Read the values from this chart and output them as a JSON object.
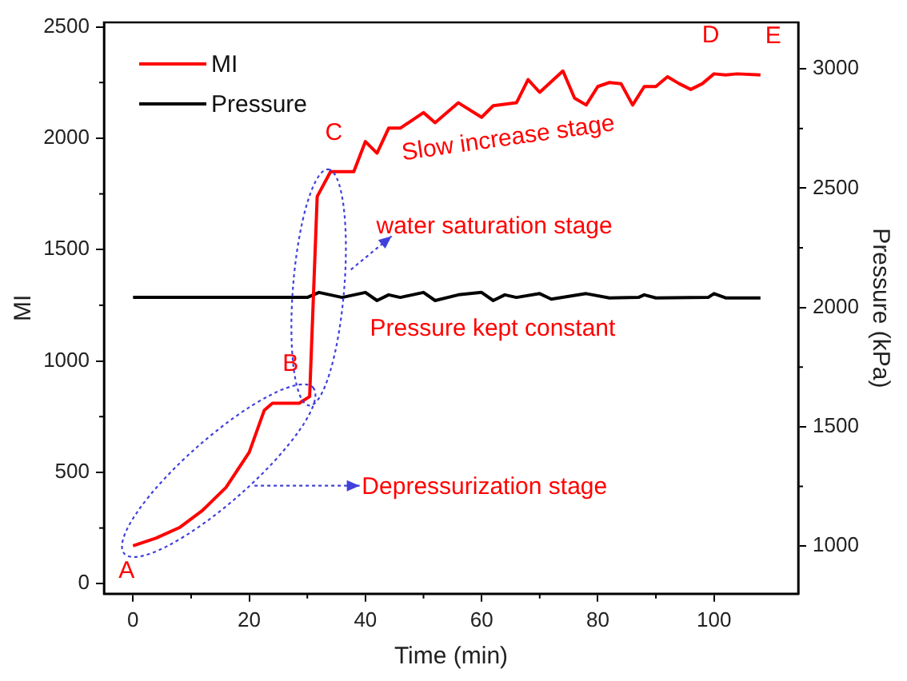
{
  "chart_data": {
    "type": "line",
    "xlabel": "Time (min)",
    "ylabel": "MI",
    "y2label": "Pressure (kPa)",
    "xlim": [
      -5,
      114.5
    ],
    "xticks": [
      0,
      20,
      40,
      60,
      80,
      100
    ],
    "ylim": [
      -45,
      2520
    ],
    "yticks": [
      0,
      500,
      1000,
      1500,
      2000,
      2500
    ],
    "y2lim": [
      800,
      3195
    ],
    "y2ticks": [
      1000,
      1500,
      2000,
      2500,
      3000
    ],
    "grid": false,
    "legend": "top left",
    "marker": "none",
    "line_style": "solid",
    "series": [
      {
        "name": "MI",
        "color": "#ff0000",
        "x": [
          0,
          4,
          8,
          12,
          16,
          20,
          22.6,
          24,
          28.6,
          30.4,
          31.7,
          34,
          38,
          40,
          42,
          44,
          46,
          50,
          52,
          56,
          60,
          62,
          66,
          68,
          70,
          74,
          76,
          78,
          80,
          82,
          84,
          86,
          88,
          90,
          92,
          94,
          96,
          98,
          100,
          102,
          104,
          108
        ],
        "values": [
          170,
          205,
          252,
          330,
          432,
          590,
          779,
          810,
          810,
          840,
          1738,
          1850,
          1850,
          1985,
          1933,
          2045,
          2045,
          2115,
          2070,
          2159,
          2094,
          2146,
          2159,
          2263,
          2206,
          2302,
          2180,
          2149,
          2232,
          2250,
          2245,
          2149,
          2232,
          2232,
          2276,
          2245,
          2219,
          2245,
          2289,
          2284,
          2289,
          2284
        ]
      },
      {
        "name": "Pressure",
        "color": "#000000",
        "axis": "y2",
        "x": [
          0,
          30,
          32,
          36,
          40,
          42,
          44,
          46,
          50,
          52,
          56,
          60,
          62,
          64,
          66,
          70,
          72,
          78,
          82,
          87,
          88,
          90,
          99,
          100,
          102,
          108
        ],
        "values": [
          2042,
          2042,
          2063,
          2042,
          2063,
          2029,
          2053,
          2042,
          2063,
          2029,
          2053,
          2063,
          2029,
          2053,
          2042,
          2058,
          2035,
          2058,
          2040,
          2042,
          2053,
          2040,
          2042,
          2058,
          2040,
          2040
        ]
      }
    ],
    "annotations": [
      {
        "text": "A",
        "x": 0,
        "y": 170
      },
      {
        "text": "B",
        "x": 30.4,
        "y": 840
      },
      {
        "text": "C",
        "x": 34,
        "y": 1850
      },
      {
        "text": "D",
        "x": 100,
        "y": 2289
      },
      {
        "text": "E",
        "x": 108,
        "y": 2284
      },
      "Slow increase stage",
      "water saturation stage",
      "Pressure kept constant",
      "Depressurization stage"
    ]
  }
}
